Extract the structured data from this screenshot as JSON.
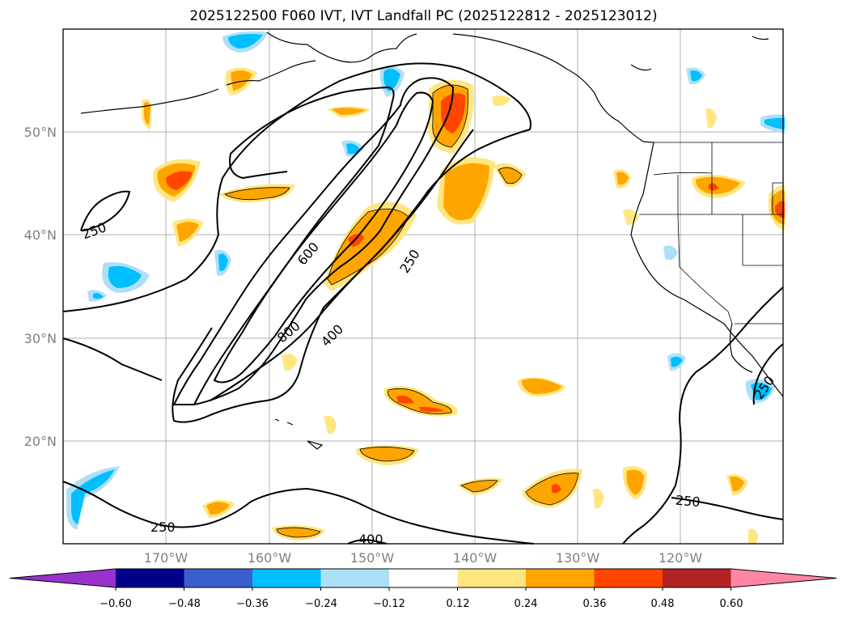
{
  "title": "2025122500 F060 IVT, IVT Landfall PC (2025122812 - 2025123012)",
  "map": {
    "lat_labels": [
      "50°N",
      "40°N",
      "30°N",
      "20°N"
    ],
    "lon_labels": [
      "170°W",
      "160°W",
      "150°W",
      "140°W",
      "130°W",
      "120°W"
    ],
    "contour_labels": [
      "250",
      "250",
      "600",
      "800",
      "400",
      "250",
      "250",
      "250",
      "400"
    ],
    "fill_colors": {
      "pos_low": "#ffe680",
      "pos_mid": "#ffa500",
      "pos_high": "#ff4500",
      "neg_low": "#ade0f7",
      "neg_mid": "#00bfff"
    }
  },
  "colorbar": {
    "ticks": [
      "−0.60",
      "−0.48",
      "−0.36",
      "−0.24",
      "−0.12",
      "0.12",
      "0.24",
      "0.36",
      "0.48",
      "0.60"
    ],
    "colors": [
      "#9932cc",
      "#00008b",
      "#3a5fcd",
      "#00bfff",
      "#ade0f7",
      "#ffffff",
      "#ffe680",
      "#ffa500",
      "#ff4500",
      "#b22222",
      "#ff85a6"
    ]
  }
}
